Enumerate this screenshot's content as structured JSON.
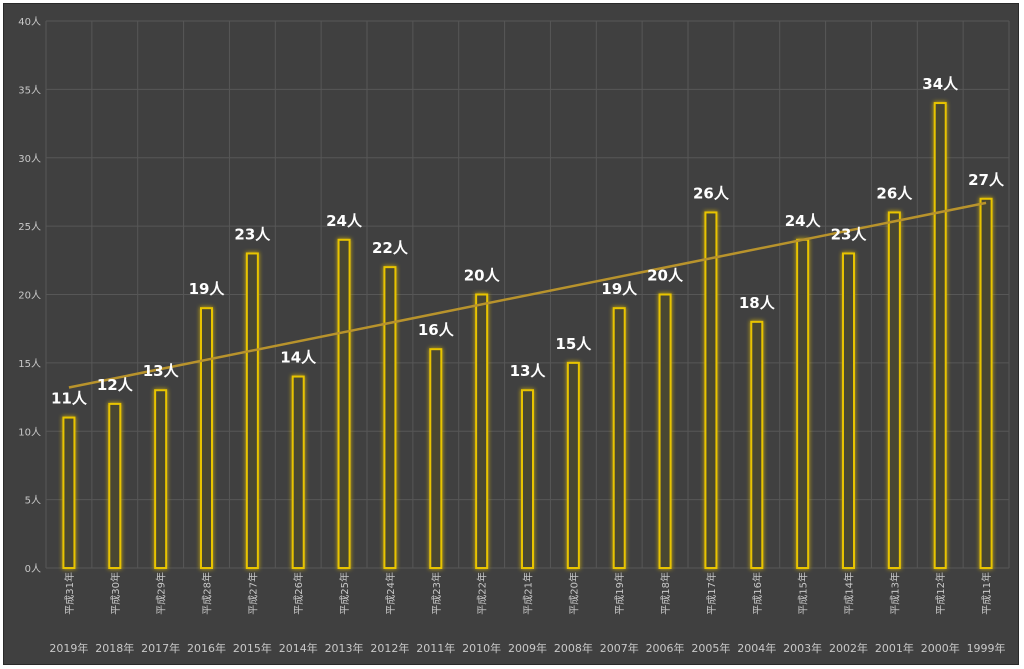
{
  "chart_data": {
    "type": "bar",
    "title": "",
    "xlabel": "",
    "ylabel": "",
    "ylim": [
      0,
      40
    ],
    "y_ticks": [
      "0人",
      "5人",
      "10人",
      "15人",
      "20人",
      "25人",
      "30人",
      "35人",
      "40人"
    ],
    "categories": [
      "平成31年",
      "平成30年",
      "平成29年",
      "平成28年",
      "平成27年",
      "平成26年",
      "平成25年",
      "平成24年",
      "平成23年",
      "平成22年",
      "平成21年",
      "平成20年",
      "平成19年",
      "平成18年",
      "平成17年",
      "平成16年",
      "平成15年",
      "平成14年",
      "平成13年",
      "平成12年",
      "平成11年"
    ],
    "years": [
      "2019年",
      "2018年",
      "2017年",
      "2016年",
      "2015年",
      "2014年",
      "2013年",
      "2012年",
      "2011年",
      "2010年",
      "2009年",
      "2008年",
      "2007年",
      "2006年",
      "2005年",
      "2004年",
      "2003年",
      "2002年",
      "2001年",
      "2000年",
      "1999年"
    ],
    "values": [
      11,
      12,
      13,
      19,
      23,
      14,
      24,
      22,
      16,
      20,
      13,
      15,
      19,
      20,
      26,
      18,
      24,
      23,
      26,
      34,
      27
    ],
    "data_labels": [
      "11人",
      "12人",
      "13人",
      "19人",
      "23人",
      "14人",
      "24人",
      "22人",
      "16人",
      "20人",
      "13人",
      "15人",
      "19人",
      "20人",
      "26人",
      "18人",
      "24人",
      "23人",
      "26人",
      "34人",
      "27人"
    ],
    "trendline": {
      "type": "linear",
      "start": 13.2,
      "end": 26.7
    },
    "grid": true,
    "legend": "none",
    "colors": {
      "background": "#404040",
      "bar_stroke": "#e8c400",
      "bar_glow": "#b39400",
      "bar_fill": "#4a4730",
      "trendline": "#b8932c",
      "grid": "#575757"
    }
  }
}
